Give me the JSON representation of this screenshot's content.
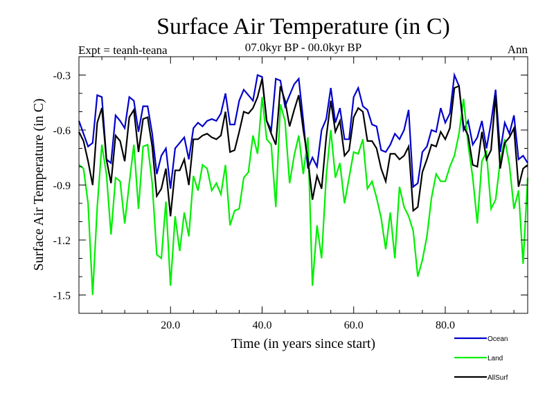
{
  "chart_data": {
    "type": "line",
    "title": "Surface Air Temperature (in C)",
    "subtitle": "07.0kyr BP - 00.0kyr BP",
    "left_label": "Expt = teanh-teana",
    "right_label": "Ann",
    "xlabel": "Time (in years since start)",
    "ylabel": "Surface Air Temperature (in C)",
    "xlim": [
      0,
      98
    ],
    "ylim": [
      -1.6,
      -0.2
    ],
    "xticks": [
      20,
      40,
      60,
      80
    ],
    "xtick_labels": [
      "20.0",
      "40.0",
      "60.0",
      "80.0"
    ],
    "yticks": [
      -0.3,
      -0.6,
      -0.9,
      -1.2,
      -1.5
    ],
    "ytick_labels": [
      "-0.3",
      "-0.6",
      "-0.9",
      "-1.2",
      "-1.5"
    ],
    "x": [
      0,
      1,
      2,
      3,
      4,
      5,
      6,
      7,
      8,
      9,
      10,
      11,
      12,
      13,
      14,
      15,
      16,
      17,
      18,
      19,
      20,
      21,
      22,
      23,
      24,
      25,
      26,
      27,
      28,
      29,
      30,
      31,
      32,
      33,
      34,
      35,
      36,
      37,
      38,
      39,
      40,
      41,
      42,
      43,
      44,
      45,
      46,
      47,
      48,
      49,
      50,
      51,
      52,
      53,
      54,
      55,
      56,
      57,
      58,
      59,
      60,
      61,
      62,
      63,
      64,
      65,
      66,
      67,
      68,
      69,
      70,
      71,
      72,
      73,
      74,
      75,
      76,
      77,
      78,
      79,
      80,
      81,
      82,
      83,
      84,
      85,
      86,
      87,
      88,
      89,
      90,
      91,
      92,
      93,
      94,
      95,
      96,
      97,
      98
    ],
    "series": [
      {
        "name": "Ocean",
        "color": "#0000cc",
        "values": [
          -0.55,
          -0.62,
          -0.69,
          -0.67,
          -0.41,
          -0.42,
          -0.76,
          -0.78,
          -0.52,
          -0.55,
          -0.59,
          -0.42,
          -0.44,
          -0.61,
          -0.47,
          -0.47,
          -0.62,
          -0.84,
          -0.74,
          -0.7,
          -0.92,
          -0.7,
          -0.67,
          -0.64,
          -0.76,
          -0.59,
          -0.56,
          -0.58,
          -0.55,
          -0.54,
          -0.55,
          -0.51,
          -0.4,
          -0.57,
          -0.57,
          -0.44,
          -0.38,
          -0.41,
          -0.44,
          -0.3,
          -0.31,
          -0.55,
          -0.6,
          -0.32,
          -0.33,
          -0.47,
          -0.41,
          -0.35,
          -0.32,
          -0.55,
          -0.81,
          -0.75,
          -0.8,
          -0.6,
          -0.54,
          -0.37,
          -0.56,
          -0.48,
          -0.65,
          -0.65,
          -0.42,
          -0.37,
          -0.47,
          -0.49,
          -0.57,
          -0.58,
          -0.71,
          -0.72,
          -0.68,
          -0.62,
          -0.65,
          -0.6,
          -0.49,
          -0.91,
          -0.89,
          -0.72,
          -0.69,
          -0.6,
          -0.61,
          -0.48,
          -0.56,
          -0.51,
          -0.3,
          -0.36,
          -0.6,
          -0.55,
          -0.68,
          -0.64,
          -0.55,
          -0.7,
          -0.56,
          -0.38,
          -0.72,
          -0.56,
          -0.62,
          -0.52,
          -0.76,
          -0.74,
          -0.78
        ]
      },
      {
        "name": "Land",
        "color": "#00ee00",
        "values": [
          -0.79,
          -0.81,
          -1.0,
          -1.5,
          -1.02,
          -0.68,
          -0.84,
          -1.17,
          -0.86,
          -0.88,
          -1.11,
          -0.89,
          -0.68,
          -1.03,
          -0.69,
          -0.68,
          -0.89,
          -1.28,
          -1.3,
          -0.99,
          -1.45,
          -1.07,
          -1.26,
          -1.05,
          -1.18,
          -0.85,
          -0.93,
          -0.79,
          -0.81,
          -0.93,
          -0.89,
          -0.95,
          -0.79,
          -1.12,
          -1.04,
          -1.03,
          -0.86,
          -0.83,
          -0.63,
          -0.73,
          -0.42,
          -0.65,
          -0.68,
          -1.02,
          -0.46,
          -0.55,
          -0.89,
          -0.74,
          -0.63,
          -0.84,
          -0.64,
          -1.45,
          -1.12,
          -1.3,
          -0.85,
          -0.6,
          -0.86,
          -0.78,
          -1.0,
          -0.86,
          -0.72,
          -0.73,
          -0.65,
          -0.92,
          -0.88,
          -0.97,
          -1.08,
          -1.25,
          -1.05,
          -1.3,
          -0.91,
          -1.02,
          -1.07,
          -1.15,
          -1.4,
          -1.31,
          -1.18,
          -0.97,
          -0.84,
          -0.88,
          -0.88,
          -0.8,
          -0.74,
          -0.62,
          -0.43,
          -0.68,
          -0.86,
          -1.11,
          -0.77,
          -0.72,
          -1.03,
          -0.98,
          -0.77,
          -0.65,
          -0.79,
          -1.03,
          -0.93,
          -1.33,
          -0.86
        ]
      },
      {
        "name": "AllSurf",
        "color": "#000000",
        "values": [
          -0.61,
          -0.66,
          -0.77,
          -0.9,
          -0.56,
          -0.48,
          -0.76,
          -0.89,
          -0.63,
          -0.66,
          -0.77,
          -0.53,
          -0.49,
          -0.72,
          -0.54,
          -0.53,
          -0.69,
          -0.96,
          -0.92,
          -0.81,
          -1.07,
          -0.82,
          -0.82,
          -0.76,
          -0.9,
          -0.65,
          -0.65,
          -0.63,
          -0.62,
          -0.64,
          -0.65,
          -0.63,
          -0.5,
          -0.72,
          -0.71,
          -0.61,
          -0.5,
          -0.51,
          -0.48,
          -0.42,
          -0.32,
          -0.55,
          -0.62,
          -0.68,
          -0.36,
          -0.44,
          -0.58,
          -0.49,
          -0.41,
          -0.6,
          -0.76,
          -0.98,
          -0.85,
          -0.92,
          -0.64,
          -0.44,
          -0.61,
          -0.55,
          -0.74,
          -0.71,
          -0.53,
          -0.48,
          -0.5,
          -0.66,
          -0.66,
          -0.7,
          -0.81,
          -0.88,
          -0.73,
          -0.73,
          -0.76,
          -0.74,
          -0.69,
          -1.04,
          -1.02,
          -0.83,
          -0.76,
          -0.68,
          -0.69,
          -0.61,
          -0.65,
          -0.59,
          -0.37,
          -0.36,
          -0.58,
          -0.63,
          -0.79,
          -0.8,
          -0.61,
          -0.76,
          -0.71,
          -0.41,
          -0.81,
          -0.67,
          -0.64,
          -0.59,
          -0.91,
          -0.81,
          -0.79
        ]
      }
    ],
    "legend_position": "bottom-right"
  }
}
